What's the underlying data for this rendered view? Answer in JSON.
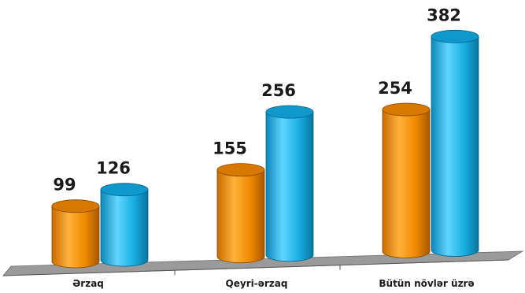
{
  "chart_data": {
    "type": "bar",
    "style": "3d-cylinder",
    "categories": [
      "Ərzaq",
      "Qeyri-ərzaq",
      "Bütün növlər üzrə"
    ],
    "series": [
      {
        "color": "#f5950f",
        "values": [
          99,
          155,
          254
        ]
      },
      {
        "color": "#1fb7ea",
        "values": [
          126,
          256,
          382
        ]
      }
    ],
    "ylim": [
      0,
      400
    ],
    "grid": false,
    "legend": "none",
    "floor_color": "#9a9a9a"
  }
}
